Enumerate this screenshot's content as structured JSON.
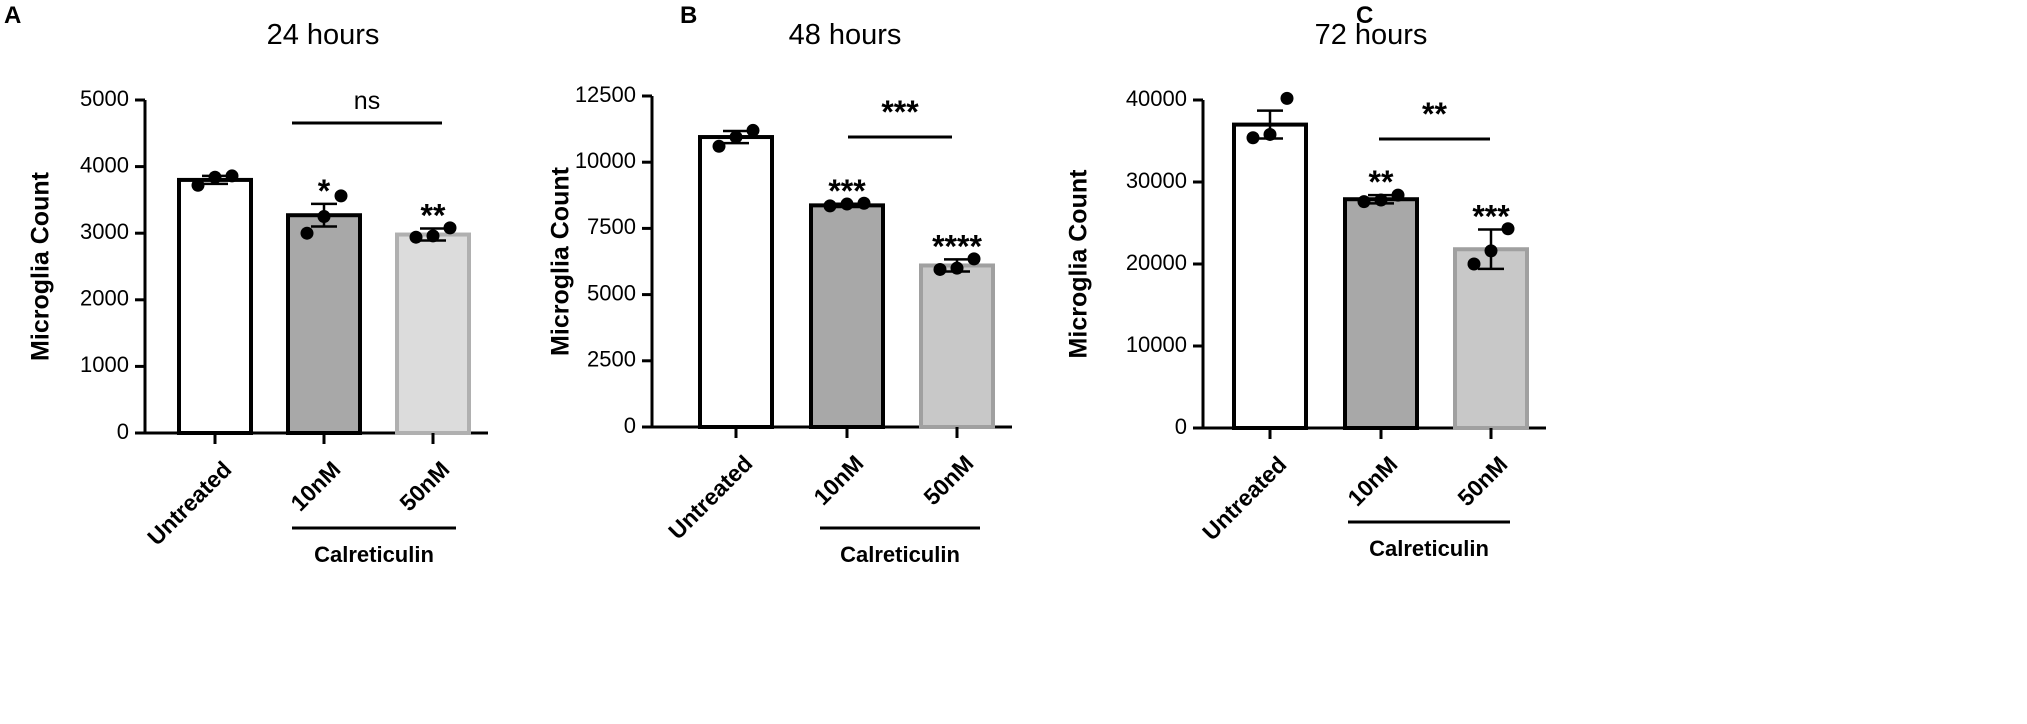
{
  "chart_data": [
    {
      "panel": "A",
      "type": "bar",
      "title": "24 hours",
      "ylabel": "Microglia Count",
      "xlabel": "",
      "ylim": [
        0,
        5000
      ],
      "yticks": [
        0,
        1000,
        2000,
        3000,
        4000,
        5000
      ],
      "categories": [
        "Untreated",
        "10nM",
        "50nM"
      ],
      "values": [
        3800,
        3270,
        2980
      ],
      "sem": [
        60,
        170,
        90
      ],
      "points": [
        [
          3720,
          3840,
          3860
        ],
        [
          3000,
          3250,
          3560
        ],
        [
          2940,
          2960,
          3080
        ]
      ],
      "fills": [
        "#ffffff",
        "#a8a8a8",
        "#dcdcdc"
      ],
      "strokes": [
        "#000000",
        "#000000",
        "#b0b0b0"
      ],
      "significance": [
        "",
        "*",
        "**"
      ],
      "comparison": {
        "from": 1,
        "to": 2,
        "label": "ns"
      },
      "group_label": "Calreticulin"
    },
    {
      "panel": "B",
      "type": "bar",
      "title": "48 hours",
      "ylabel": "Microglia Count",
      "xlabel": "",
      "ylim": [
        0,
        12500
      ],
      "yticks": [
        0,
        2500,
        5000,
        7500,
        10000,
        12500
      ],
      "categories": [
        "Untreated",
        "10nM",
        "50nM"
      ],
      "values": [
        10950,
        8370,
        6100
      ],
      "sem": [
        230,
        60,
        230
      ],
      "points": [
        [
          10600,
          10950,
          11200
        ],
        [
          8350,
          8420,
          8450
        ],
        [
          5950,
          6000,
          6350
        ]
      ],
      "fills": [
        "#ffffff",
        "#a8a8a8",
        "#c8c8c8"
      ],
      "strokes": [
        "#000000",
        "#000000",
        "#a0a0a0"
      ],
      "significance": [
        "",
        "***",
        "****"
      ],
      "comparison": {
        "from": 1,
        "to": 2,
        "label": "***"
      },
      "group_label": "Calreticulin"
    },
    {
      "panel": "C",
      "type": "bar",
      "title": "72 hours",
      "ylabel": "Microglia Count",
      "xlabel": "",
      "ylim": [
        0,
        40000
      ],
      "yticks": [
        0,
        10000,
        20000,
        30000,
        40000
      ],
      "categories": [
        "Untreated",
        "10nM",
        "50nM"
      ],
      "values": [
        37000,
        27900,
        21800
      ],
      "sem": [
        1700,
        500,
        2400
      ],
      "points": [
        [
          35400,
          35800,
          40200
        ],
        [
          27600,
          27800,
          28400
        ],
        [
          20000,
          21600,
          24300
        ]
      ],
      "fills": [
        "#ffffff",
        "#a8a8a8",
        "#c8c8c8"
      ],
      "strokes": [
        "#000000",
        "#000000",
        "#a0a0a0"
      ],
      "significance": [
        "",
        "**",
        "***"
      ],
      "comparison": {
        "from": 1,
        "to": 2,
        "label": "**"
      },
      "group_label": "Calreticulin"
    }
  ]
}
